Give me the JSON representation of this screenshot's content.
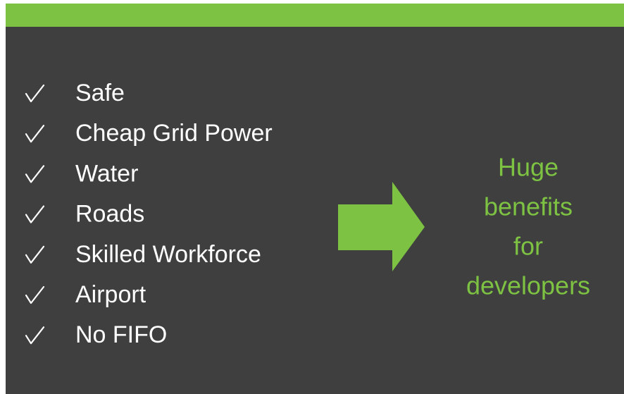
{
  "items": [
    "Safe",
    "Cheap Grid Power",
    "Water",
    "Roads",
    "Skilled Workforce",
    "Airport",
    "No FIFO"
  ],
  "callout": [
    "Huge",
    "benefits",
    "for",
    "developers"
  ]
}
